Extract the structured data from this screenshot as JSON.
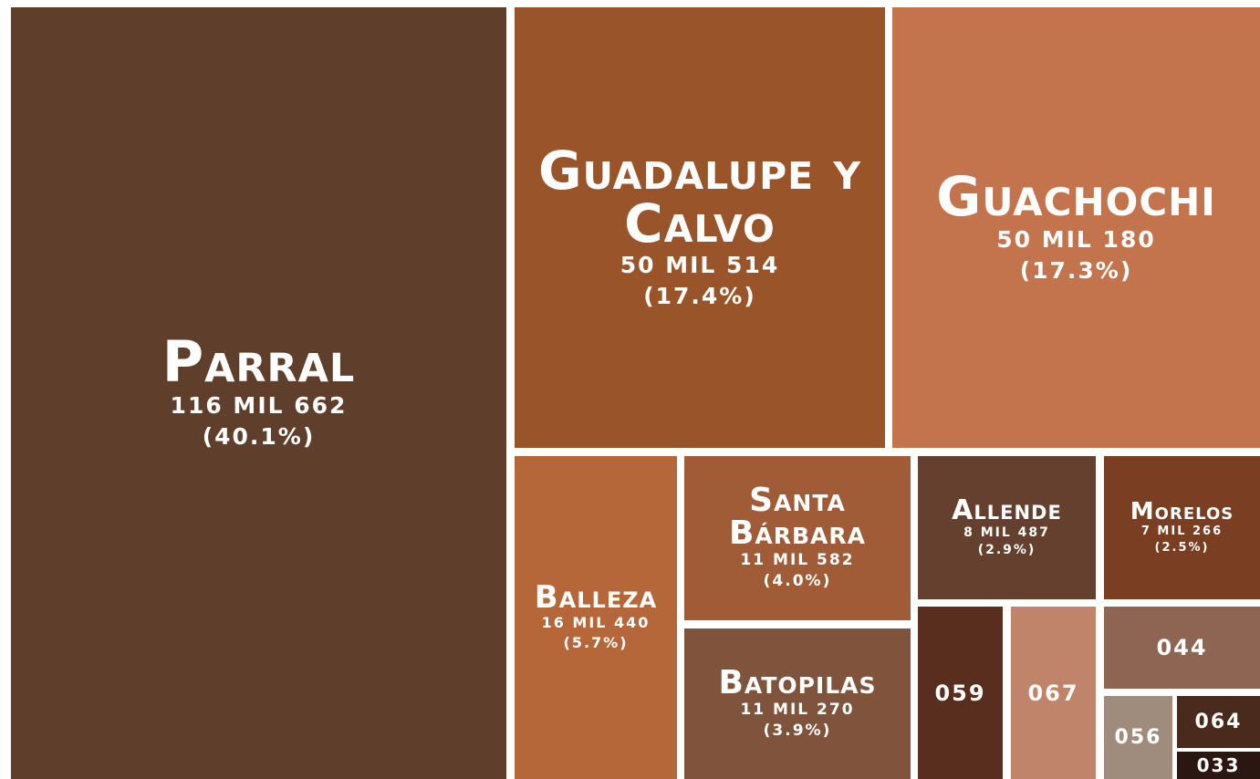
{
  "chart_data": {
    "type": "treemap",
    "names": [
      "Parral",
      "Guadalupe y Calvo",
      "Guachochi",
      "Balleza",
      "Santa Bárbara",
      "Batopilas",
      "Allende",
      "Morelos",
      "059",
      "067",
      "044",
      "056",
      "064",
      "033"
    ],
    "values": [
      116662,
      50514,
      50180,
      16440,
      11582,
      11270,
      8487,
      7266,
      4960,
      4960,
      4700,
      1950,
      1580,
      660
    ],
    "value_labels": [
      "116 MIL 662",
      "50 MIL 514",
      "50 MIL 180",
      "16 MIL 440",
      "11 MIL 582",
      "11 MIL 270",
      "8 MIL 487",
      "7 MIL 266",
      null,
      null,
      null,
      null,
      null,
      null
    ],
    "percent_labels": [
      "(40.1%)",
      "(17.4%)",
      "(17.3%)",
      "(5.7%)",
      "(4.0%)",
      "(3.9%)",
      "(2.9%)",
      "(2.5%)",
      null,
      null,
      null,
      null,
      null,
      null
    ],
    "colors": [
      "#5f3f2c",
      "#9a5429",
      "#c4744d",
      "#b5673a",
      "#a05c37",
      "#7f533c",
      "#65402f",
      "#7a3e22",
      "#5a2e1e",
      "#c0846a",
      "#8e6452",
      "#a08c7d",
      "#4a2a1c",
      "#2a1712"
    ]
  }
}
